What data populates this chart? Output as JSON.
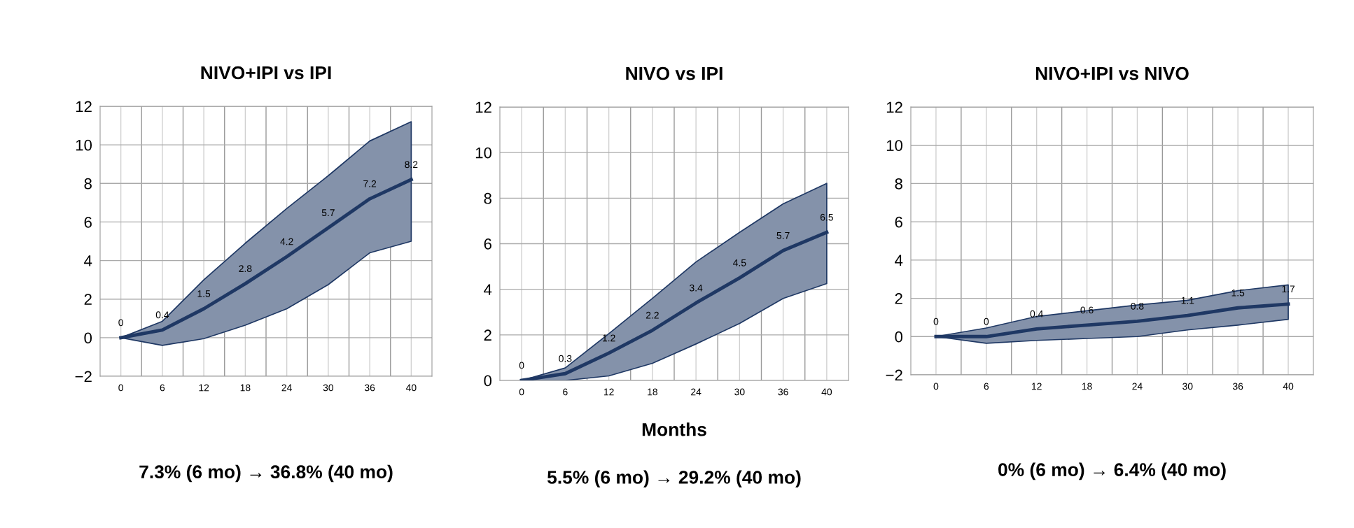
{
  "chart_data": [
    {
      "type": "line",
      "title": "NIVO+IPI vs IPI",
      "categories": [
        "0",
        "6",
        "12",
        "18",
        "24",
        "30",
        "36",
        "40"
      ],
      "series": [
        {
          "color": "#1f3864",
          "values": [
            0,
            0.4,
            1.5,
            2.8,
            4.2,
            5.7,
            7.2,
            8.2
          ],
          "lower": [
            0,
            -0.4,
            -0.05,
            0.65,
            1.5,
            2.75,
            4.4,
            5.0
          ],
          "upper": [
            0,
            0.85,
            3.0,
            4.9,
            6.7,
            8.4,
            10.2,
            11.2
          ]
        }
      ],
      "ylim": [
        -2,
        12
      ],
      "yticks": [
        {
          "value": -2,
          "label": "−2"
        },
        0,
        2,
        4,
        6,
        8,
        10,
        12
      ],
      "grid": true,
      "data_labels": true,
      "marker": "none",
      "line_style": "solid",
      "legend": false,
      "annotations": [
        "7.3% (6 mo) → 36.8% (40 mo)"
      ]
    },
    {
      "type": "line",
      "title": "NIVO vs IPI",
      "xlabel": "Months",
      "categories": [
        "0",
        "6",
        "12",
        "18",
        "24",
        "30",
        "36",
        "40"
      ],
      "series": [
        {
          "color": "#1f3864",
          "values": [
            0,
            0.3,
            1.2,
            2.2,
            3.4,
            4.5,
            5.7,
            6.5
          ],
          "lower": [
            0,
            0,
            0.2,
            0.75,
            1.6,
            2.5,
            3.6,
            4.25
          ],
          "upper": [
            0,
            0.55,
            2.05,
            3.6,
            5.2,
            6.5,
            7.75,
            8.65
          ]
        }
      ],
      "ylim": [
        0,
        12
      ],
      "yticks": [
        0,
        2,
        4,
        6,
        8,
        10,
        12
      ],
      "grid": true,
      "data_labels": true,
      "marker": "none",
      "line_style": "solid",
      "legend": false,
      "annotations": [
        "5.5% (6 mo) → 29.2% (40 mo)"
      ]
    },
    {
      "type": "line",
      "title": "NIVO+IPI vs NIVO",
      "categories": [
        "0",
        "6",
        "12",
        "18",
        "24",
        "30",
        "36",
        "40"
      ],
      "series": [
        {
          "color": "#1f3864",
          "values": [
            0,
            0,
            0.4,
            0.6,
            0.8,
            1.1,
            1.5,
            1.7
          ],
          "lower": [
            0,
            -0.35,
            -0.2,
            -0.1,
            0.0,
            0.35,
            0.6,
            0.9
          ],
          "upper": [
            0,
            0.45,
            1.05,
            1.35,
            1.65,
            1.9,
            2.4,
            2.7
          ]
        }
      ],
      "ylim": [
        -2,
        12
      ],
      "yticks": [
        {
          "value": -2,
          "label": "−2"
        },
        0,
        2,
        4,
        6,
        8,
        10,
        12
      ],
      "grid": true,
      "data_labels": true,
      "marker": "none",
      "line_style": "solid",
      "legend": false,
      "annotations": [
        "0% (6 mo) → 6.4% (40 mo)"
      ]
    }
  ]
}
